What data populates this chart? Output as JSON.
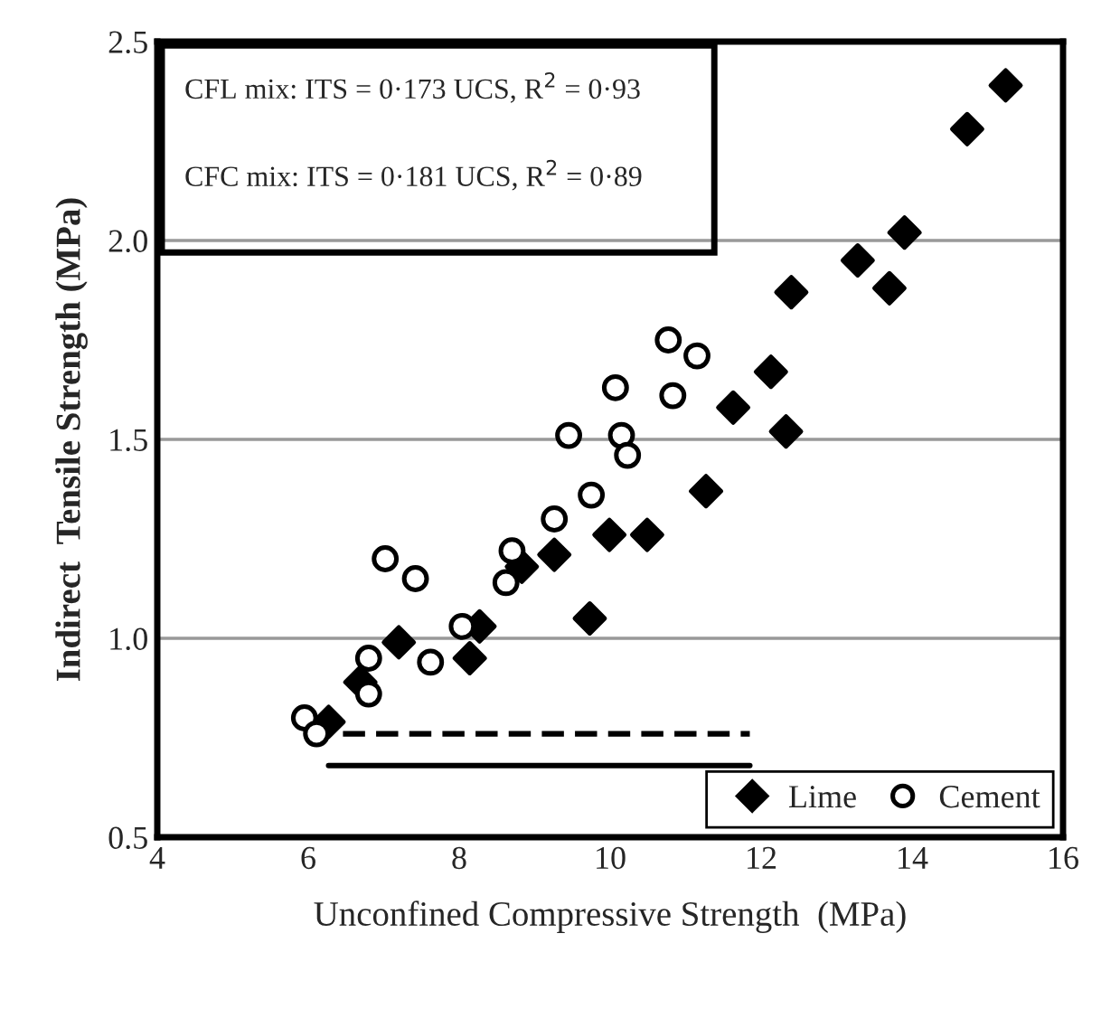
{
  "chart_data": {
    "type": "scatter",
    "xlabel": "Unconfined Compressive Strength  (MPa)",
    "ylabel": "Indirect  Tensile Strength (MPa)",
    "xlim": [
      4,
      16
    ],
    "xticks": [
      4,
      6,
      8,
      10,
      12,
      14,
      16
    ],
    "ylim": [
      0.5,
      2.5
    ],
    "yticks": [
      {
        "value": 0.5,
        "label": "0.5"
      },
      {
        "value": 1.0,
        "label": "1.0"
      },
      {
        "value": 1.5,
        "label": "1.5"
      },
      {
        "value": 2.0,
        "label": "2.0"
      },
      {
        "value": 2.5,
        "label": "2.5"
      }
    ],
    "grid": "y",
    "legend": "bottom right",
    "annotations": [
      "CFL mix: ITS = 0·173 UCS, R$^{2}$ = 0·93",
      "CFC mix: ITS = 0·181 UCS, R$^{2}$ = 0·89"
    ],
    "series": [
      {
        "name": "Lime",
        "color": "#000000",
        "marker": "diamond",
        "x": [
          6.27,
          6.69,
          7.2,
          8.14,
          8.27,
          8.83,
          9.26,
          9.73,
          9.99,
          10.49,
          11.27,
          11.63,
          12.13,
          12.33,
          12.4,
          13.28,
          13.7,
          13.9,
          14.73,
          15.24
        ],
        "values": [
          0.79,
          0.89,
          0.99,
          0.95,
          1.03,
          1.18,
          1.21,
          1.05,
          1.26,
          1.26,
          1.37,
          1.58,
          1.67,
          1.52,
          1.87,
          1.95,
          1.88,
          2.02,
          2.28,
          2.39
        ]
      },
      {
        "name": "Cement",
        "color": "#000000",
        "marker": "circle",
        "x": [
          5.95,
          6.11,
          6.8,
          6.8,
          7.02,
          7.42,
          7.62,
          8.04,
          8.62,
          8.7,
          9.26,
          9.45,
          9.75,
          10.07,
          10.15,
          10.23,
          10.77,
          11.15,
          10.83
        ],
        "values": [
          0.8,
          0.76,
          0.95,
          0.86,
          1.2,
          1.15,
          0.94,
          1.03,
          1.14,
          1.22,
          1.3,
          1.51,
          1.36,
          1.63,
          1.51,
          1.46,
          1.75,
          1.71,
          1.61
        ]
      },
      {
        "type": "line",
        "color": "#000000",
        "line_style": "dashed",
        "marker": "none",
        "x": [
          6.46,
          11.85
        ],
        "values": [
          0.76,
          0.76
        ]
      },
      {
        "type": "line",
        "color": "#000000",
        "line_style": "solid",
        "marker": "none",
        "x": [
          6.27,
          11.85
        ],
        "values": [
          0.68,
          0.68
        ]
      }
    ]
  }
}
